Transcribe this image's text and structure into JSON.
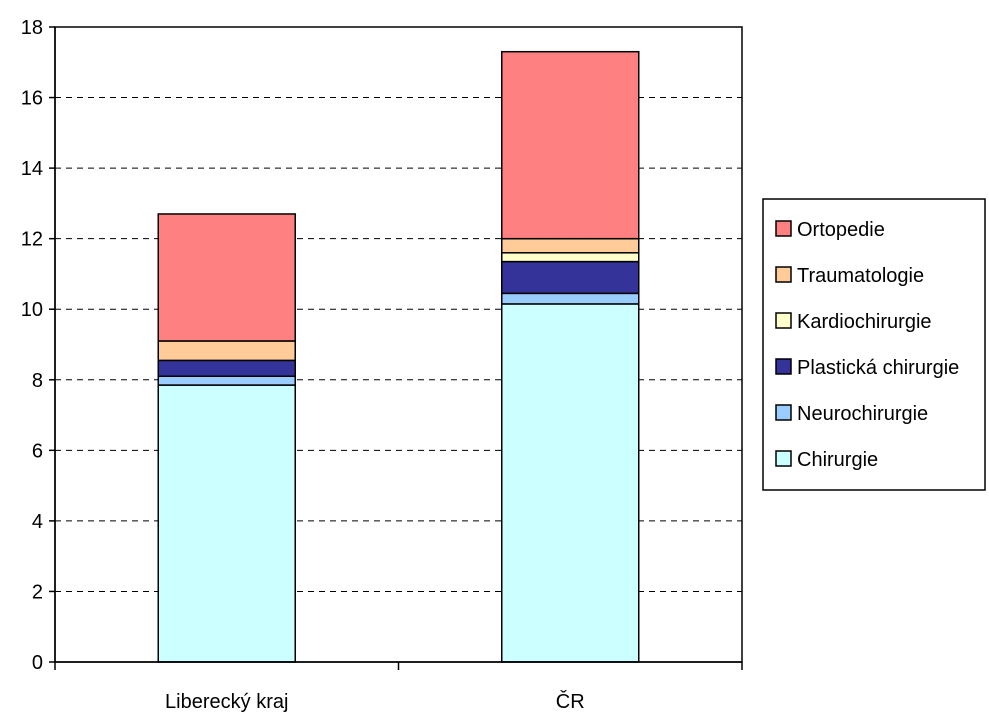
{
  "chart_data": {
    "type": "bar",
    "stacked": true,
    "categories": [
      "Liberecký kraj",
      "ČR"
    ],
    "series": [
      {
        "name": "Chirurgie",
        "color": "#ccffff",
        "values": [
          7.85,
          10.15
        ]
      },
      {
        "name": "Neurochirurgie",
        "color": "#99ccff",
        "values": [
          0.25,
          0.3
        ]
      },
      {
        "name": "Plastická chirurgie",
        "color": "#333399",
        "values": [
          0.45,
          0.9
        ]
      },
      {
        "name": "Kardiochirurgie",
        "color": "#ffffcc",
        "values": [
          0.0,
          0.25
        ]
      },
      {
        "name": "Traumatologie",
        "color": "#ffcc99",
        "values": [
          0.55,
          0.4
        ]
      },
      {
        "name": "Ortopedie",
        "color": "#ff8080",
        "values": [
          3.6,
          5.3
        ]
      }
    ],
    "ylim": [
      0,
      18
    ],
    "yticks": [
      "0",
      "2",
      "4",
      "6",
      "8",
      "10",
      "12",
      "14",
      "16",
      "18"
    ],
    "grid": true,
    "legend": "right",
    "legend_order": [
      "Ortopedie",
      "Traumatologie",
      "Kardiochirurgie",
      "Plastická chirurgie",
      "Neurochirurgie",
      "Chirurgie"
    ],
    "title": "",
    "xlabel": "",
    "ylabel": ""
  }
}
